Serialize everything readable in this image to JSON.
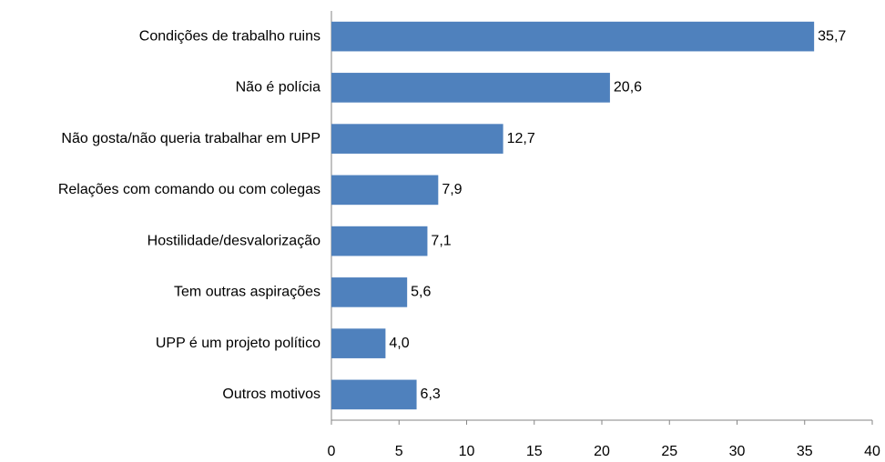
{
  "chart_data": {
    "type": "bar",
    "orientation": "horizontal",
    "categories": [
      "Condições de trabalho ruins",
      "Não é polícia",
      "Não gosta/não queria trabalhar em UPP",
      "Relações com comando ou com colegas",
      "Hostilidade/desvalorização",
      "Tem outras aspirações",
      "UPP é um projeto político",
      "Outros motivos"
    ],
    "values": [
      35.7,
      20.6,
      12.7,
      7.9,
      7.1,
      5.6,
      4.0,
      6.3
    ],
    "value_labels": [
      "35,7",
      "20,6",
      "12,7",
      "7,9",
      "7,1",
      "5,6",
      "4,0",
      "6,3"
    ],
    "color": "#4f81bd",
    "xlim": [
      0,
      40
    ],
    "xticks": [
      0,
      5,
      10,
      15,
      20,
      25,
      30,
      35,
      40
    ]
  }
}
